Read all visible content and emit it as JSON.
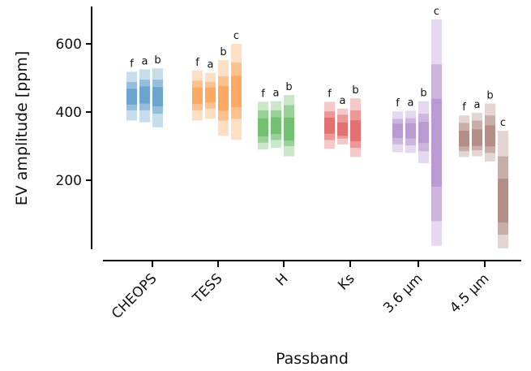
{
  "chart_data": {
    "type": "bar",
    "xlabel": "Passband",
    "ylabel": "EV amplitude [ppm]",
    "ylim": [
      0,
      700
    ],
    "yticks": [
      200,
      400,
      600
    ],
    "grid": false,
    "categories": [
      "CHEOPS",
      "TESS",
      "H",
      "Ks",
      "3.6 μm",
      "4.5 μm"
    ],
    "colors": [
      "#1f77b4",
      "#ff7f0e",
      "#2ca02c",
      "#d62728",
      "#9467bd",
      "#8c564b"
    ],
    "groups": [
      {
        "category": "CHEOPS",
        "bars": [
          {
            "label": "f",
            "p03": 375,
            "p16": 405,
            "p50": 445,
            "p84": 488,
            "p97": 518
          },
          {
            "label": "a",
            "p03": 370,
            "p16": 405,
            "p50": 450,
            "p84": 495,
            "p97": 525
          },
          {
            "label": "b",
            "p03": 355,
            "p16": 395,
            "p50": 445,
            "p84": 495,
            "p97": 528
          }
        ]
      },
      {
        "category": "TESS",
        "bars": [
          {
            "label": "f",
            "p03": 375,
            "p16": 405,
            "p50": 448,
            "p84": 492,
            "p97": 522
          },
          {
            "label": "a",
            "p03": 380,
            "p16": 410,
            "p50": 450,
            "p84": 488,
            "p97": 515
          },
          {
            "label": "b",
            "p03": 330,
            "p16": 375,
            "p50": 440,
            "p84": 505,
            "p97": 552
          },
          {
            "label": "c",
            "p03": 318,
            "p16": 380,
            "p50": 460,
            "p84": 545,
            "p97": 600
          }
        ]
      },
      {
        "category": "H",
        "bars": [
          {
            "label": "f",
            "p03": 290,
            "p16": 310,
            "p50": 355,
            "p84": 405,
            "p97": 430
          },
          {
            "label": "a",
            "p03": 295,
            "p16": 318,
            "p50": 360,
            "p84": 405,
            "p97": 432
          },
          {
            "label": "b",
            "p03": 270,
            "p16": 300,
            "p50": 350,
            "p84": 420,
            "p97": 450
          }
        ]
      },
      {
        "category": "Ks",
        "bars": [
          {
            "label": "f",
            "p03": 292,
            "p16": 318,
            "p50": 360,
            "p84": 402,
            "p97": 430
          },
          {
            "label": "a",
            "p03": 305,
            "p16": 322,
            "p50": 350,
            "p84": 392,
            "p97": 410
          },
          {
            "label": "b",
            "p03": 268,
            "p16": 295,
            "p50": 345,
            "p84": 405,
            "p97": 440
          }
        ]
      },
      {
        "category": "3.6 μm",
        "bars": [
          {
            "label": "f",
            "p03": 282,
            "p16": 305,
            "p50": 345,
            "p84": 380,
            "p97": 402
          },
          {
            "label": "a",
            "p03": 280,
            "p16": 302,
            "p50": 345,
            "p84": 382,
            "p97": 404
          },
          {
            "label": "b",
            "p03": 250,
            "p16": 285,
            "p50": 340,
            "p84": 395,
            "p97": 432
          },
          {
            "label": "c",
            "p03": 8,
            "p16": 80,
            "p50": 310,
            "p84": 540,
            "p97": 672
          }
        ]
      },
      {
        "category": "4.5 μm",
        "bars": [
          {
            "label": "f",
            "p03": 268,
            "p16": 285,
            "p50": 322,
            "p84": 368,
            "p97": 390
          },
          {
            "label": "a",
            "p03": 270,
            "p16": 288,
            "p50": 325,
            "p84": 375,
            "p97": 398
          },
          {
            "label": "b",
            "p03": 255,
            "p16": 280,
            "p50": 330,
            "p84": 390,
            "p97": 425
          },
          {
            "label": "c",
            "p03": 0,
            "p16": 40,
            "p50": 140,
            "p84": 270,
            "p97": 345
          }
        ]
      }
    ]
  }
}
